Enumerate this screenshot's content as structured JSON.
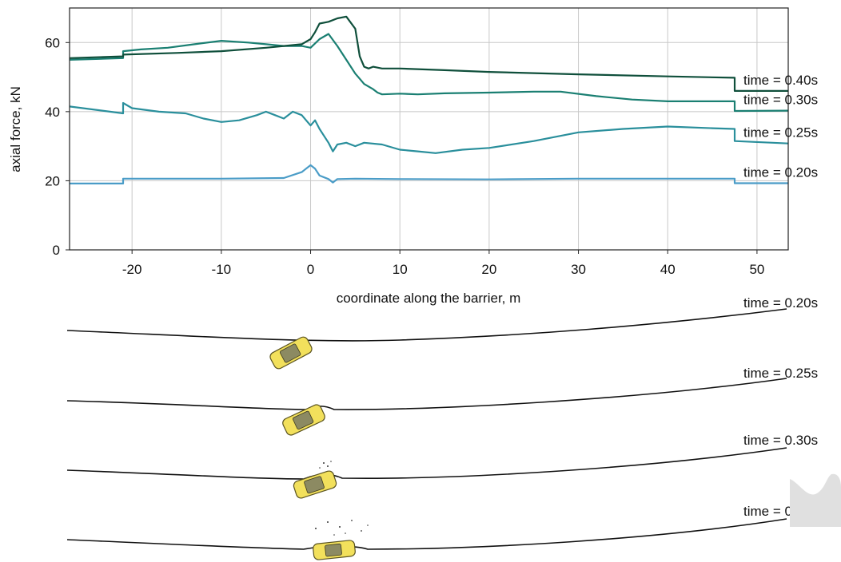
{
  "chart_data": [
    {
      "type": "line",
      "title": "",
      "xlabel": "coordinate along the barrier, m",
      "ylabel": "axial force, kN",
      "xlim": [
        -27,
        53.5
      ],
      "ylim": [
        0,
        70
      ],
      "xticks": [
        -20,
        -10,
        0,
        10,
        20,
        30,
        40,
        50
      ],
      "xtick_labels": [
        "-20",
        "-10",
        "0",
        "10",
        "20",
        "30",
        "40",
        "50"
      ],
      "yticks": [
        0,
        20,
        40,
        60
      ],
      "ytick_labels": [
        "0",
        "20",
        "40",
        "60"
      ],
      "grid": true,
      "legend": "none",
      "series": [
        {
          "name": "time = 0.20s",
          "color": "#4a9cc7",
          "x": [
            -27,
            -21,
            -21,
            -10,
            -3,
            -1,
            0,
            0.5,
            1,
            2,
            2.5,
            3,
            5,
            10,
            20,
            30,
            40,
            47.5,
            47.5,
            53.5
          ],
          "y": [
            19.2,
            19.2,
            20.6,
            20.6,
            20.8,
            22.5,
            24.5,
            23.5,
            21.5,
            20.5,
            19.5,
            20.5,
            20.6,
            20.5,
            20.4,
            20.6,
            20.6,
            20.6,
            19.3,
            19.3
          ]
        },
        {
          "name": "time = 0.25s",
          "color": "#2a8f9c",
          "x": [
            -27,
            -21,
            -21,
            -20,
            -17,
            -14,
            -12,
            -10,
            -8,
            -6,
            -5,
            -4,
            -3,
            -2,
            -1,
            0,
            0.5,
            1,
            1.5,
            2,
            2.5,
            3,
            4,
            5,
            6,
            8,
            10,
            12,
            14,
            17,
            20,
            25,
            30,
            35,
            40,
            45,
            47.5,
            47.5,
            53.5
          ],
          "y": [
            41.5,
            39.5,
            42.5,
            41,
            40,
            39.5,
            38,
            37,
            37.5,
            39,
            40,
            39,
            38,
            40,
            39,
            36,
            37.5,
            35,
            33,
            31,
            28.5,
            30.5,
            31,
            30,
            31,
            30.5,
            29,
            28.5,
            28,
            29,
            29.5,
            31.5,
            34,
            35,
            35.7,
            35.2,
            35,
            31.5,
            30.8
          ]
        },
        {
          "name": "time = 0.30s",
          "color": "#1a7f72",
          "x": [
            -27,
            -21,
            -21,
            -19,
            -16,
            -13,
            -10,
            -7,
            -5,
            -3,
            -2,
            -1,
            0,
            1,
            2,
            3,
            4,
            5,
            5.5,
            6,
            7,
            7.5,
            8,
            10,
            12,
            15,
            20,
            25,
            28,
            32,
            36,
            40,
            47.5,
            47.5,
            53.5
          ],
          "y": [
            55,
            55.5,
            57.5,
            58,
            58.5,
            59.5,
            60.5,
            60,
            59.5,
            59,
            59,
            59,
            58.5,
            61,
            62.5,
            59,
            55,
            51,
            49.5,
            48,
            46.5,
            45.5,
            45,
            45.2,
            45,
            45.3,
            45.5,
            45.8,
            45.8,
            44.5,
            43.5,
            43,
            43,
            40.2,
            40.3
          ]
        },
        {
          "name": "time = 0.40s",
          "color": "#0f4f3b",
          "x": [
            -27,
            -21,
            -21,
            -15,
            -10,
            -5,
            -3,
            -1,
            0,
            0.5,
            1,
            2,
            3,
            4,
            5,
            5.5,
            6,
            6.5,
            7,
            8,
            10,
            15,
            20,
            30,
            40,
            47.5,
            47.5,
            53.5
          ],
          "y": [
            55.5,
            56,
            56.5,
            57,
            57.5,
            58.5,
            59,
            59.5,
            61,
            63,
            65.5,
            66,
            67,
            67.5,
            64,
            56,
            53,
            52.5,
            53,
            52.5,
            52.5,
            52,
            51.5,
            50.8,
            50.2,
            49.8,
            46,
            46
          ]
        }
      ]
    },
    {
      "type": "other",
      "description_labels": [
        "time = 0.20s",
        "time = 0.25s",
        "time = 0.30s",
        "time = 0.40s"
      ],
      "barrier_color": "#111111",
      "car_color": "#f2e05c"
    }
  ]
}
